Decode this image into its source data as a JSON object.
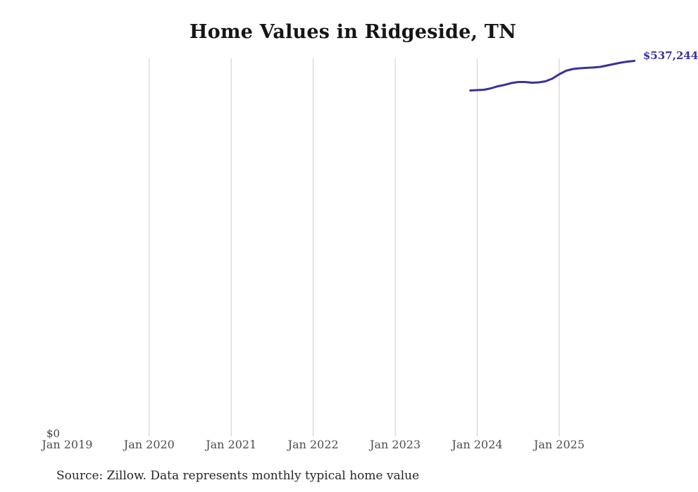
{
  "chart": {
    "title": "Home Values in Ridgeside, TN",
    "y_zero_label": "$0",
    "latest_value_label": "$537,244",
    "source_note": "Source: Zillow. Data represents monthly typical home value",
    "line_color": "#39329b",
    "grid_color": "#cccccc",
    "label_color": "#4d4d4d"
  },
  "chart_data": {
    "type": "line",
    "title": "Home Values in Ridgeside, TN",
    "xlabel": "",
    "ylabel": "",
    "ylim": [
      0,
      553000
    ],
    "grid": "vertical-only",
    "legend": "none",
    "x_tick_labels": [
      "Jan 2019",
      "Jan 2020",
      "Jan 2021",
      "Jan 2022",
      "Jan 2023",
      "Jan 2024",
      "Jan 2025"
    ],
    "y_tick_labels": [
      "$0"
    ],
    "annotations": [
      {
        "text": "$537,244",
        "attached_to": "last-point"
      }
    ],
    "series": [
      {
        "name": "Monthly typical home value",
        "x": [
          "Dec 2023",
          "Jan 2024",
          "Feb 2024",
          "Mar 2024",
          "Apr 2024",
          "May 2024",
          "Jun 2024",
          "Jul 2024",
          "Aug 2024",
          "Sep 2024",
          "Oct 2024",
          "Nov 2024",
          "Dec 2024",
          "Jan 2025",
          "Feb 2025",
          "Mar 2025",
          "Apr 2025",
          "May 2025",
          "Jun 2025",
          "Jul 2025",
          "Aug 2025",
          "Sep 2025",
          "Oct 2025",
          "Nov 2025",
          "Dec 2025"
        ],
        "values": [
          494800,
          495300,
          495800,
          497800,
          500800,
          502800,
          505400,
          506900,
          506900,
          505900,
          506400,
          507900,
          511900,
          518000,
          523100,
          525600,
          526600,
          527200,
          527700,
          528700,
          530700,
          532700,
          534700,
          536200,
          537244
        ]
      }
    ]
  }
}
